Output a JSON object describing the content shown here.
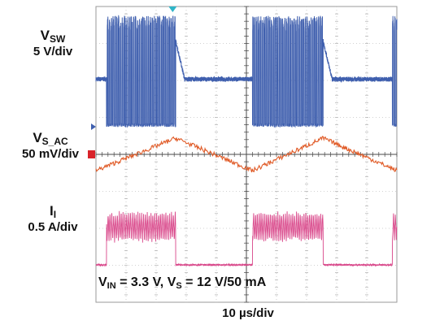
{
  "chart_data": {
    "type": "line",
    "time_per_div": "10 µs/div",
    "x_range_us": [
      0,
      100
    ],
    "grid": true,
    "annotation": {
      "parts": [
        {
          "text": "V",
          "sub": "IN"
        },
        {
          "text": " = 3.3 V, V",
          "sub": "S"
        },
        {
          "text": " = 12 V/50 mA",
          "sub": ""
        }
      ]
    },
    "series": [
      {
        "name": "V",
        "name_sub": "SW",
        "scale": "5 V/div",
        "color": "#3f5fae",
        "kind": "switching",
        "bursts_us": [
          [
            3.5,
            26.5
          ],
          [
            52,
            75.5
          ],
          [
            98.5,
            100
          ]
        ],
        "high_v": 14,
        "low_v": 0,
        "idle_v": 6,
        "divs_above_marker": 2.1,
        "divs_below_marker": 0.9
      },
      {
        "name": "V",
        "name_sub": "S_AC",
        "scale": "50 mV/div",
        "color": "#e05a26",
        "kind": "ripple",
        "points_us_mv": [
          [
            0,
            -22
          ],
          [
            26.5,
            22
          ],
          [
            52,
            -22
          ],
          [
            75.5,
            22
          ],
          [
            100,
            -22
          ]
        ],
        "divs_above_marker": 0.8,
        "divs_below_marker": 1.0
      },
      {
        "name": "I",
        "name_sub": "I",
        "scale": "0.5 A/div",
        "color": "#d9478a",
        "kind": "inductor",
        "bursts_us": [
          [
            3.5,
            26.5
          ],
          [
            52,
            75.5
          ],
          [
            98.5,
            100
          ]
        ],
        "peak_a": 0.7,
        "mean_a": 0.45,
        "idle_a": 0,
        "divs_above_marker": 1.7,
        "divs_below_marker": 0.1
      }
    ]
  }
}
